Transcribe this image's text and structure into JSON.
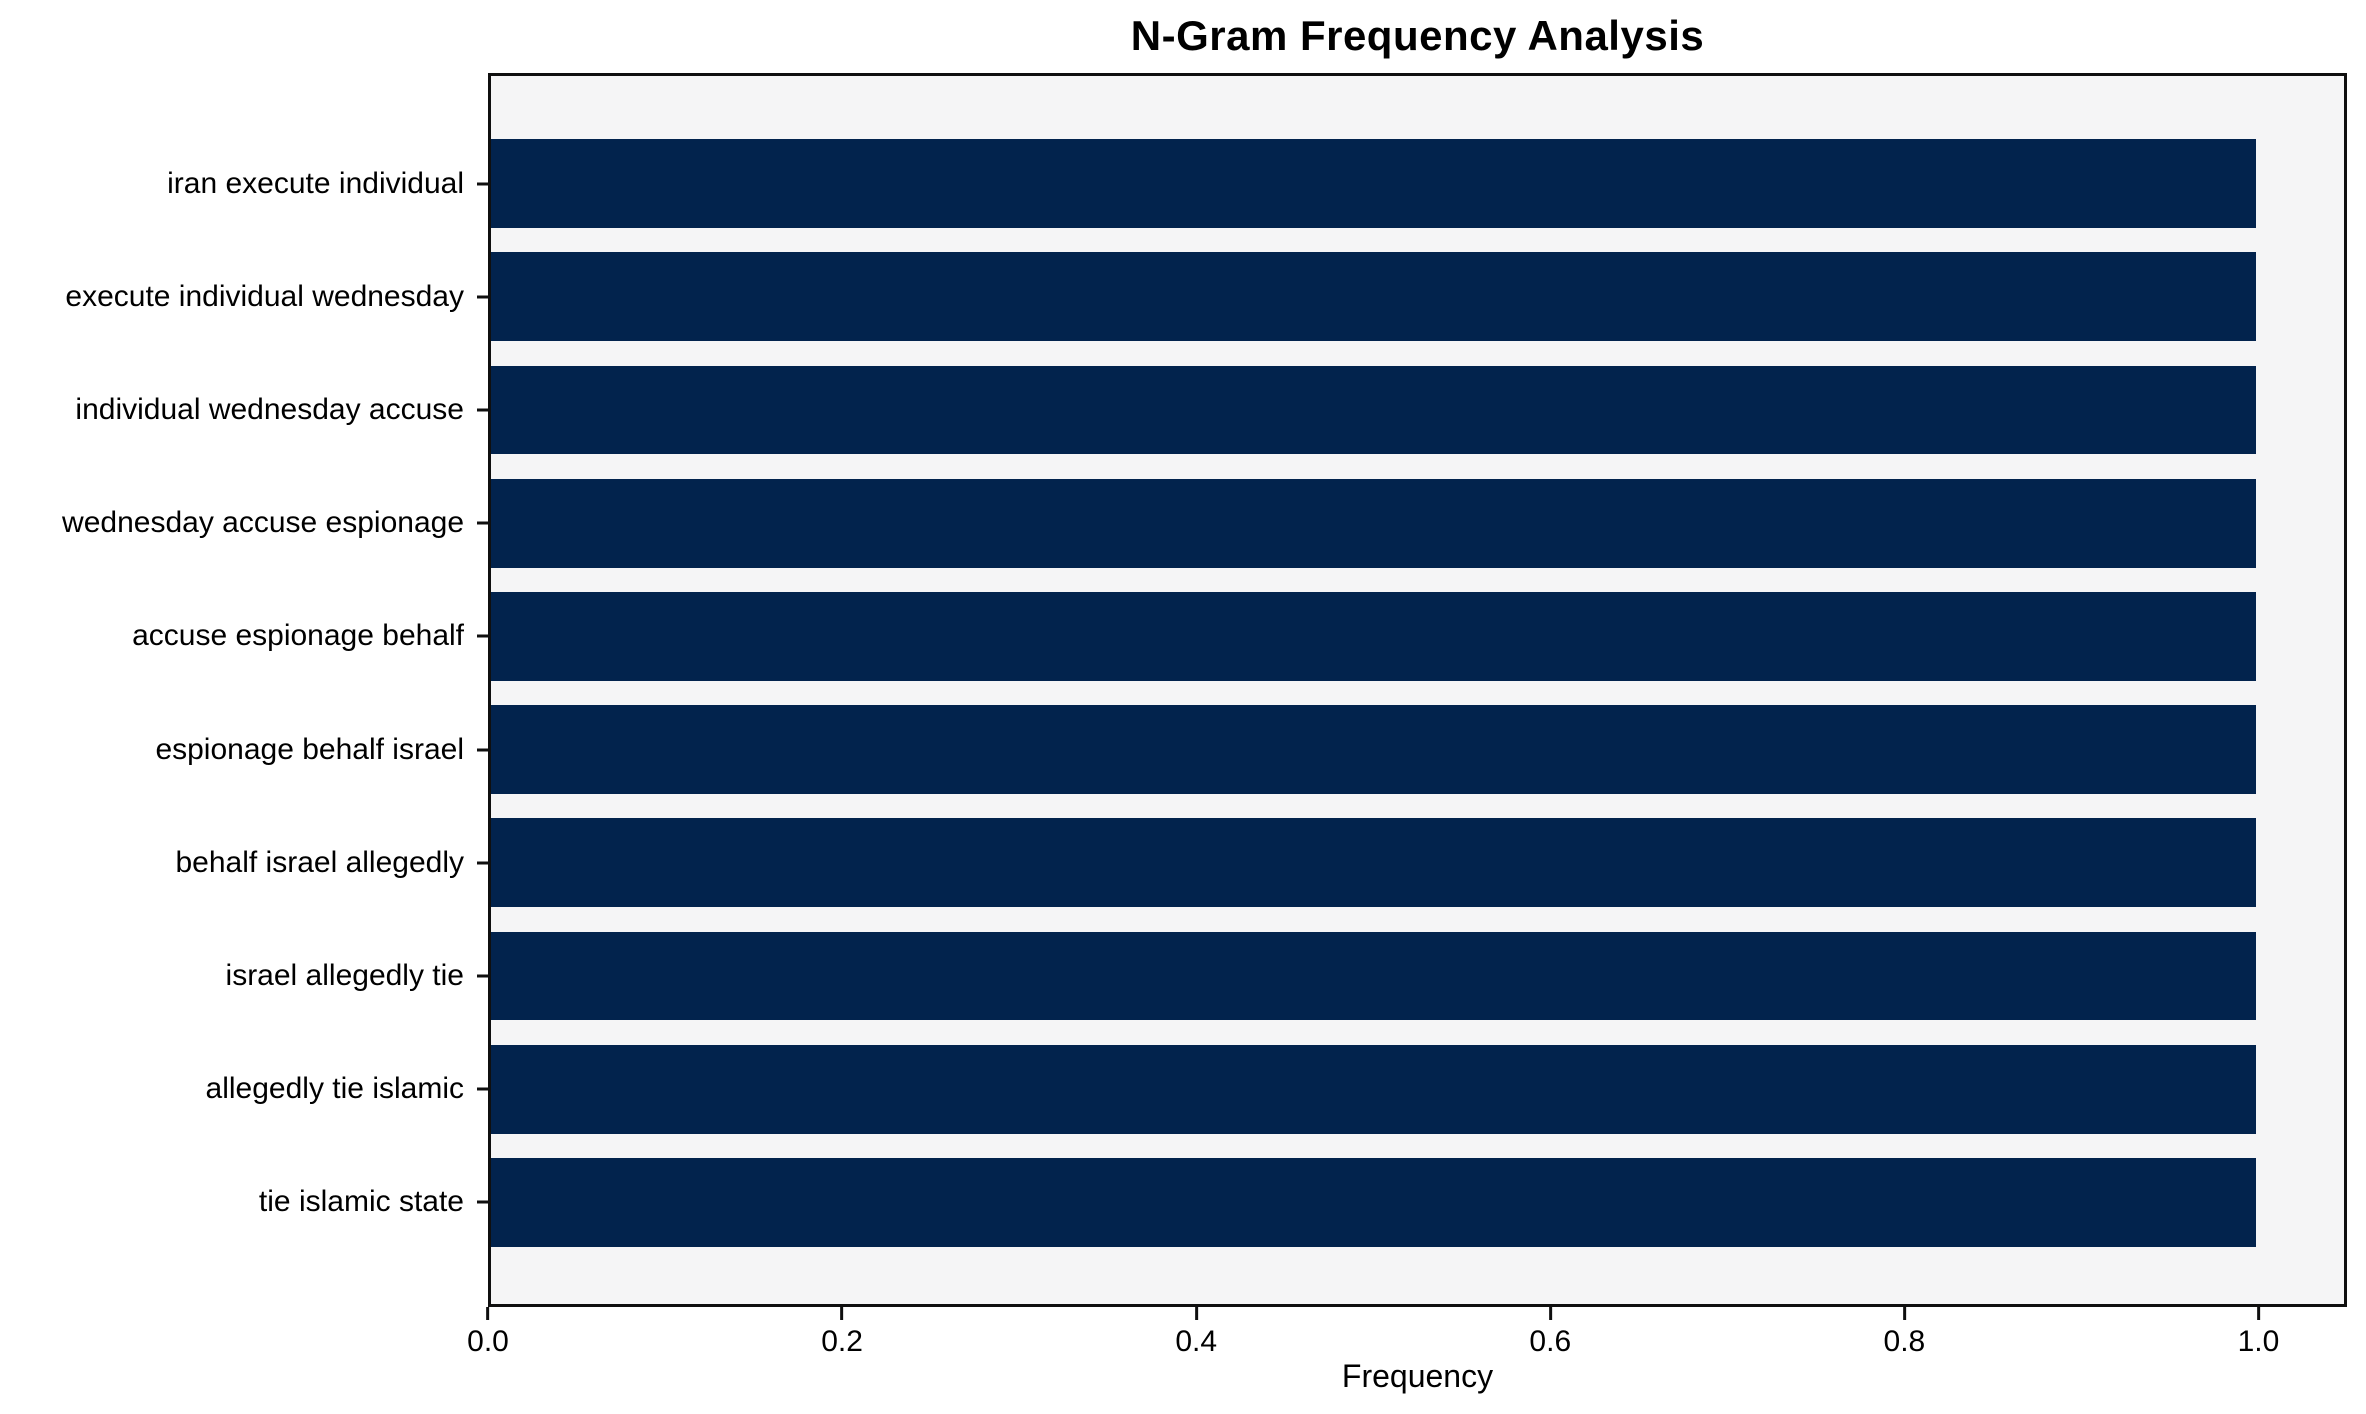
{
  "chart_data": {
    "type": "bar",
    "orientation": "horizontal",
    "title": "N-Gram Frequency Analysis",
    "xlabel": "Frequency",
    "ylabel": "",
    "categories": [
      "iran execute individual",
      "execute individual wednesday",
      "individual wednesday accuse",
      "wednesday accuse espionage",
      "accuse espionage behalf",
      "espionage behalf israel",
      "behalf israel allegedly",
      "israel allegedly tie",
      "allegedly tie islamic",
      "tie islamic state"
    ],
    "values": [
      1.0,
      1.0,
      1.0,
      1.0,
      1.0,
      1.0,
      1.0,
      1.0,
      1.0,
      1.0
    ],
    "xlim": [
      0,
      1.05
    ],
    "xticks": [
      {
        "value": 0.0,
        "label": "0.0"
      },
      {
        "value": 0.2,
        "label": "0.2"
      },
      {
        "value": 0.4,
        "label": "0.4"
      },
      {
        "value": 0.6,
        "label": "0.6"
      },
      {
        "value": 0.8,
        "label": "0.8"
      },
      {
        "value": 1.0,
        "label": "1.0"
      }
    ],
    "grid": false,
    "legend": "none",
    "bar_color": "#02234d",
    "plot_background": "#f5f5f6",
    "figure_background": "#ffffff",
    "spine_color": "#0f0f0f"
  }
}
